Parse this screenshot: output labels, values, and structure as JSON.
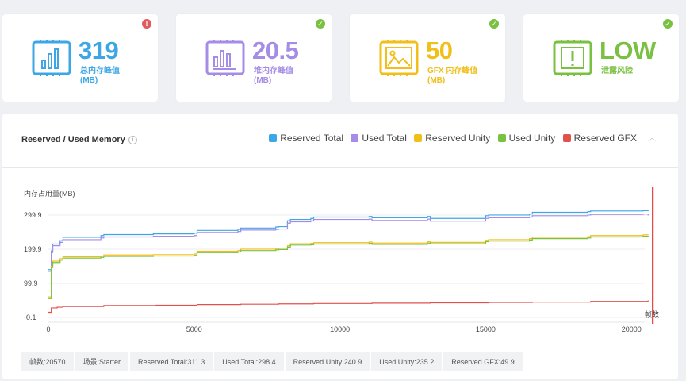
{
  "cards": [
    {
      "value": "319",
      "label_line1": "总内存峰值",
      "label_line2": "(MB)",
      "color": "#3da7e6",
      "badge": "!",
      "badge_color": "#e05b5b",
      "icon": "bar-chart-icon"
    },
    {
      "value": "20.5",
      "label_line1": "堆内存峰值",
      "label_line2": "(MB)",
      "color": "#a58ce6",
      "badge": "✓",
      "badge_color": "#7ac142",
      "icon": "bar-chart-icon"
    },
    {
      "value": "50",
      "label_line1": "GFX 内存峰值",
      "label_line2": "(MB)",
      "color": "#f0bf19",
      "badge": "✓",
      "badge_color": "#7ac142",
      "icon": "image-icon"
    },
    {
      "value": "LOW",
      "label_line1": "泄露风险",
      "label_line2": "",
      "color": "#7ac142",
      "badge": "✓",
      "badge_color": "#7ac142",
      "icon": "warning-icon"
    }
  ],
  "panel": {
    "title": "Reserved / Used Memory",
    "info": "i",
    "collapse": "︿"
  },
  "chart_data": {
    "type": "line",
    "ylabel": "内存占用量(MB)",
    "xlabel": "帧数",
    "ylim": [
      -0.1,
      299.9
    ],
    "xlim": [
      0,
      21000
    ],
    "yticks": [
      "299.9",
      "199.9",
      "99.9",
      "-0.1"
    ],
    "ytick_values": [
      299.9,
      199.9,
      99.9,
      -0.1
    ],
    "xticks": [
      "0",
      "5000",
      "10000",
      "15000",
      "20000"
    ],
    "xtick_values": [
      0,
      5000,
      10000,
      15000,
      20000
    ],
    "marker_frame": 20570,
    "marker_color": "#e02020",
    "series": [
      {
        "name": "Reserved Total",
        "color": "#3da7e6",
        "x": [
          0,
          100,
          150,
          400,
          500,
          1800,
          1900,
          3600,
          3700,
          5000,
          5100,
          6500,
          6600,
          7800,
          7900,
          8200,
          8300,
          9000,
          9100,
          11000,
          11100,
          13000,
          13100,
          15000,
          15100,
          16500,
          16600,
          18500,
          18600,
          20400,
          20570
        ],
        "y": [
          140,
          195,
          215,
          225,
          235,
          240,
          243,
          245,
          245,
          247,
          255,
          258,
          262,
          265,
          266,
          283,
          287,
          290,
          294,
          296,
          292,
          296,
          290,
          298,
          300,
          303,
          308,
          310,
          312,
          313,
          311.3
        ]
      },
      {
        "name": "Used Total",
        "color": "#a58ce6",
        "x": [
          0,
          100,
          150,
          400,
          500,
          1800,
          1900,
          3600,
          3700,
          5000,
          5100,
          6500,
          6600,
          7800,
          7900,
          8200,
          8300,
          9000,
          9100,
          11000,
          11100,
          13000,
          13100,
          15000,
          15100,
          16500,
          16600,
          18500,
          18600,
          20400,
          20570
        ],
        "y": [
          135,
          190,
          210,
          220,
          228,
          233,
          236,
          238,
          238,
          240,
          249,
          252,
          256,
          258,
          259,
          276,
          280,
          283,
          287,
          288,
          284,
          288,
          282,
          290,
          292,
          294,
          298,
          300,
          302,
          303,
          298.4
        ]
      },
      {
        "name": "Reserved Unity",
        "color": "#f0bf19",
        "x": [
          0,
          100,
          150,
          400,
          500,
          1800,
          1900,
          3600,
          3700,
          5000,
          5100,
          6500,
          6600,
          7800,
          7900,
          8200,
          8300,
          9000,
          9100,
          11000,
          11100,
          13000,
          13100,
          15000,
          15100,
          16500,
          16600,
          18500,
          18600,
          20400,
          20570
        ],
        "y": [
          60,
          150,
          165,
          172,
          178,
          180,
          183,
          184,
          184,
          186,
          194,
          196,
          200,
          202,
          203,
          210,
          216,
          217,
          219,
          221,
          218,
          222,
          220,
          226,
          228,
          231,
          235,
          237,
          240,
          242,
          240.9
        ]
      },
      {
        "name": "Used Unity",
        "color": "#7ac142",
        "x": [
          0,
          100,
          150,
          400,
          500,
          1800,
          1900,
          3600,
          3700,
          5000,
          5100,
          6500,
          6600,
          7800,
          7900,
          8200,
          8300,
          9000,
          9100,
          11000,
          11100,
          13000,
          13100,
          15000,
          15100,
          16500,
          16600,
          18500,
          18600,
          20400,
          20570
        ],
        "y": [
          55,
          146,
          161,
          168,
          174,
          176,
          179,
          180,
          180,
          182,
          190,
          192,
          196,
          198,
          199,
          206,
          212,
          213,
          215,
          217,
          214,
          218,
          216,
          222,
          224,
          227,
          231,
          233,
          236,
          238,
          235.2
        ]
      },
      {
        "name": "Reserved GFX",
        "color": "#e0504c",
        "x": [
          0,
          100,
          300,
          500,
          1900,
          3700,
          5100,
          6600,
          7900,
          9100,
          11100,
          13100,
          15100,
          16600,
          18600,
          20570
        ],
        "y": [
          15,
          28,
          30,
          32,
          35,
          36,
          38,
          39,
          40,
          41,
          42,
          43,
          44,
          45,
          47,
          49.9
        ]
      }
    ]
  },
  "status": {
    "frame": "帧数:20570",
    "scene": "场景:Starter",
    "reserved_total": "Reserved Total:311.3",
    "used_total": "Used Total:298.4",
    "reserved_unity": "Reserved Unity:240.9",
    "used_unity": "Used Unity:235.2",
    "reserved_gfx": "Reserved GFX:49.9"
  }
}
